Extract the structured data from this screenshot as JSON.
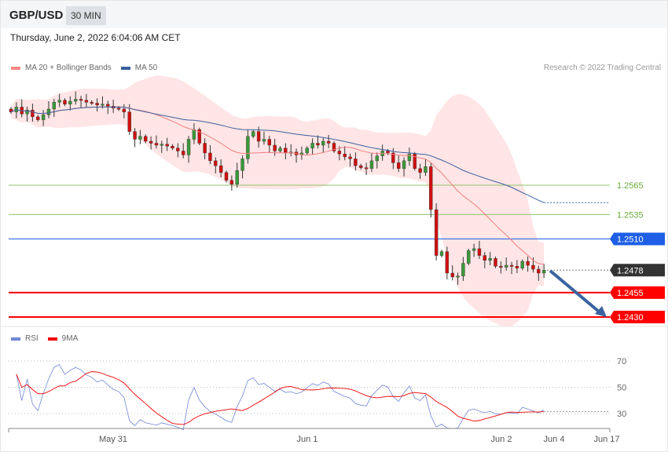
{
  "header": {
    "symbol": "GBP/USD",
    "timeframe": "30 MIN",
    "datetime": "Thursday, June 2, 2022 6:04:06 AM CET"
  },
  "legend": {
    "ma20": "MA 20 + Bollinger Bands",
    "ma50": "MA 50",
    "credit": "Research © 2022 Trading Central",
    "rsi": "RSI",
    "ma9": "9MA"
  },
  "colors": {
    "up": "#3a9a3a",
    "down": "#d01010",
    "ma20": "#f08080",
    "ma50": "#3a5fa0",
    "band": "#ffe0e0",
    "support": "#ff0000",
    "pivot": "#1e5fe6",
    "resistance": "#8cc36a",
    "last": "#333333",
    "arrow": "#3a64a0",
    "rsi": "#6f86d6"
  },
  "levels": [
    {
      "label": "1.2565",
      "value": 1.2565,
      "type": "resistance"
    },
    {
      "label": "1.2535",
      "value": 1.2535,
      "type": "resistance"
    },
    {
      "label": "1.2510",
      "value": 1.251,
      "type": "pivot"
    },
    {
      "label": "1.2478",
      "value": 1.2478,
      "type": "last"
    },
    {
      "label": "1.2455",
      "value": 1.2455,
      "type": "support"
    },
    {
      "label": "1.2430",
      "value": 1.243,
      "type": "support"
    }
  ],
  "rsi_axis": [
    "70",
    "50",
    "30"
  ],
  "x_axis": [
    "May 31",
    "Jun 1",
    "Jun 2",
    "Jun 4",
    "Jun 17"
  ],
  "chart_data": {
    "type": "candlestick",
    "target": 1.243,
    "closes": [
      1.264,
      1.2645,
      1.2638,
      1.2642,
      1.2635,
      1.2632,
      1.2637,
      1.2643,
      1.265,
      1.2652,
      1.2648,
      1.2651,
      1.2653,
      1.2652,
      1.265,
      1.2649,
      1.2647,
      1.2648,
      1.2646,
      1.2644,
      1.2643,
      1.264,
      1.262,
      1.2612,
      1.2615,
      1.261,
      1.2608,
      1.2606,
      1.2607,
      1.2605,
      1.2603,
      1.26,
      1.2596,
      1.2612,
      1.2622,
      1.2608,
      1.2598,
      1.259,
      1.2585,
      1.2578,
      1.257,
      1.2566,
      1.258,
      1.2592,
      1.2615,
      1.262,
      1.261,
      1.2612,
      1.2606,
      1.26,
      1.2603,
      1.2598,
      1.2599,
      1.2596,
      1.2598,
      1.2603,
      1.2608,
      1.2606,
      1.261,
      1.2608,
      1.26,
      1.2597,
      1.2594,
      1.2592,
      1.2585,
      1.2583,
      1.2582,
      1.259,
      1.2595,
      1.26,
      1.2598,
      1.2588,
      1.2582,
      1.259,
      1.2597,
      1.2582,
      1.2578,
      1.2584,
      1.254,
      1.2493,
      1.2497,
      1.2475,
      1.2471,
      1.2472,
      1.2485,
      1.2498,
      1.25,
      1.2493,
      1.2488,
      1.249,
      1.2482,
      1.2481,
      1.2483,
      1.2482,
      1.248,
      1.2487,
      1.2483,
      1.2479,
      1.2475,
      1.2478
    ]
  }
}
